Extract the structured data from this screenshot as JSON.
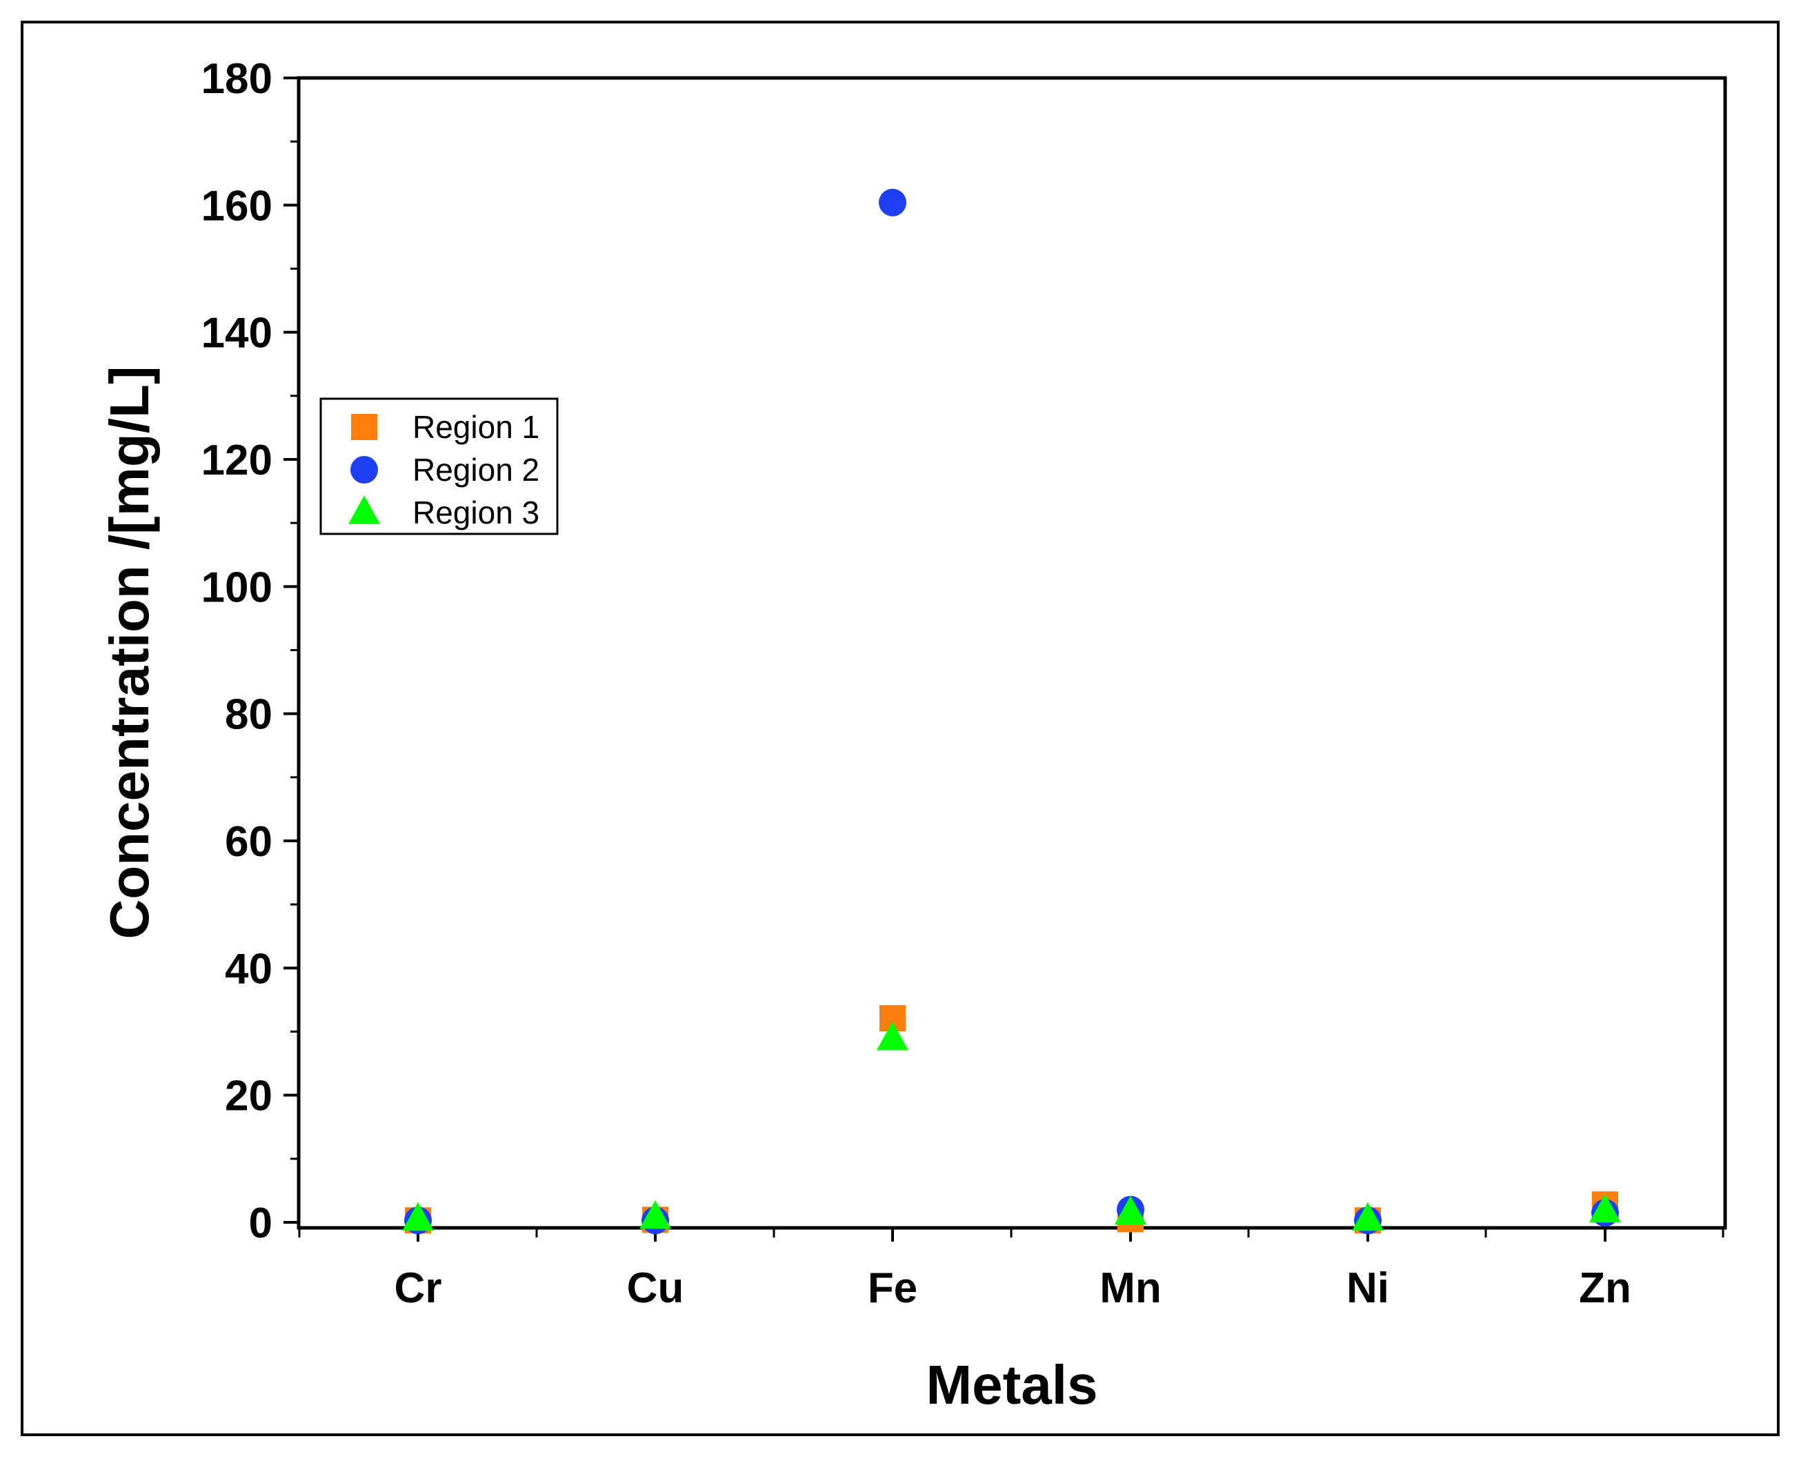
{
  "chart_data": {
    "type": "scatter",
    "title": "",
    "xlabel": "Metals",
    "ylabel": "Concentration /[mg/L]",
    "categories": [
      "Cr",
      "Cu",
      "Fe",
      "Mn",
      "Ni",
      "Zn"
    ],
    "ylim": [
      0,
      180
    ],
    "yticks": [
      0,
      20,
      40,
      60,
      80,
      100,
      120,
      140,
      160,
      180
    ],
    "grid": false,
    "legend_position": "left",
    "series": [
      {
        "name": "Region 1",
        "marker": "square",
        "color": "#ff7f0e",
        "values": [
          0.3,
          0.4,
          32.1,
          0.5,
          0.3,
          2.8
        ]
      },
      {
        "name": "Region 2",
        "marker": "circle",
        "color": "#1f3ff5",
        "values": [
          0.3,
          0.3,
          160.4,
          2.0,
          0.3,
          1.5
        ]
      },
      {
        "name": "Region 3",
        "marker": "triangle",
        "color": "#00ff00",
        "values": [
          0.5,
          0.8,
          28.9,
          1.5,
          0.5,
          1.8
        ]
      }
    ]
  }
}
